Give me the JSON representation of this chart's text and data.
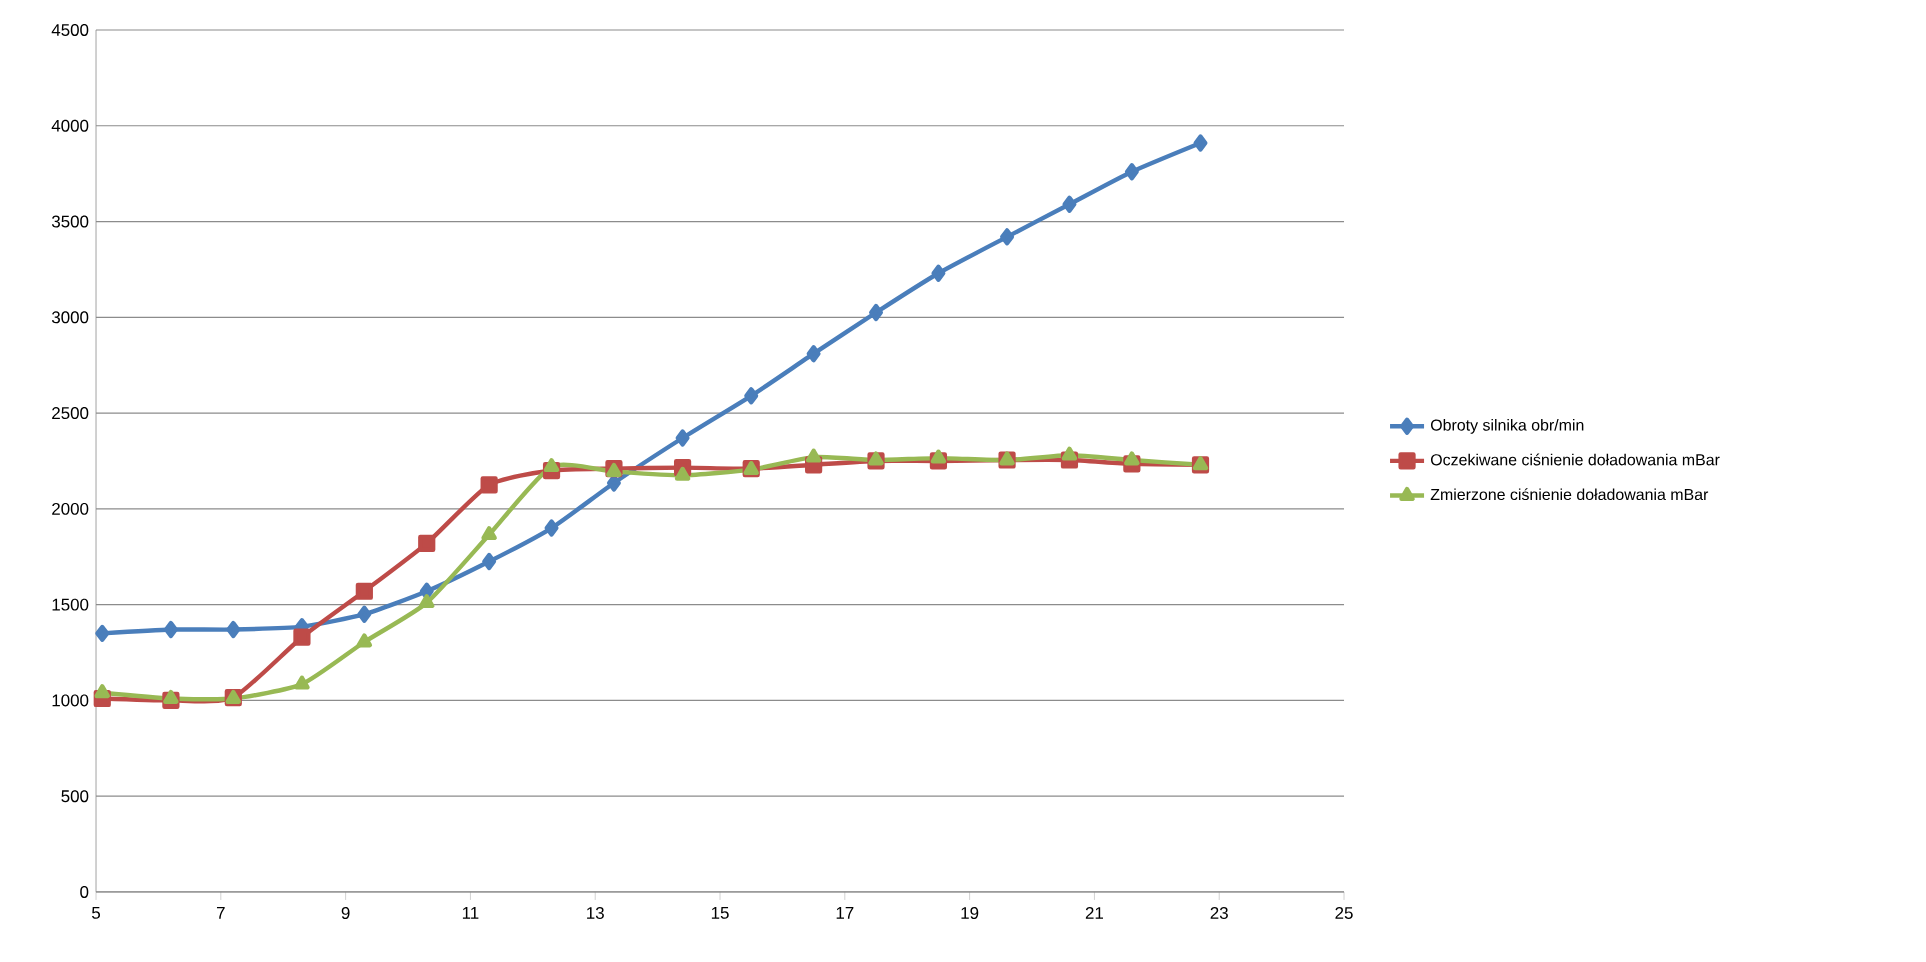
{
  "chart_data": {
    "type": "line",
    "xlim": [
      5,
      25
    ],
    "xticks": [
      5,
      7,
      9,
      11,
      13,
      15,
      17,
      19,
      21,
      23,
      25
    ],
    "ylim": [
      0,
      4500
    ],
    "yticks": [
      0,
      500,
      1000,
      1500,
      2000,
      2500,
      3000,
      3500,
      4000,
      4500
    ],
    "grid": "y",
    "legend": "right",
    "line_style": "solid",
    "x": [
      5.1,
      6.2,
      7.2,
      8.3,
      9.3,
      10.3,
      11.3,
      12.3,
      13.3,
      14.4,
      15.5,
      16.5,
      17.5,
      18.5,
      19.6,
      20.6,
      21.6,
      22.7
    ],
    "series": [
      {
        "name": "Obroty silnika obr/min",
        "color": "#4a7ebb",
        "marker": "diamond",
        "values": [
          1350,
          1370,
          1370,
          1385,
          1450,
          1570,
          1725,
          1900,
          2135,
          2370,
          2590,
          2810,
          3025,
          3230,
          3420,
          3590,
          3760,
          3910
        ]
      },
      {
        "name": "Oczekiwane ciśnienie doładowania mBar",
        "color": "#be4b48",
        "marker": "square",
        "values": [
          1010,
          1000,
          1015,
          1330,
          1570,
          1820,
          2125,
          2200,
          2210,
          2215,
          2210,
          2230,
          2250,
          2250,
          2255,
          2255,
          2235,
          2230
        ]
      },
      {
        "name": "Zmierzone ciśnienie doładowania mBar",
        "color": "#98b954",
        "marker": "triangle",
        "values": [
          1040,
          1010,
          1010,
          1085,
          1305,
          1510,
          1865,
          2220,
          2195,
          2175,
          2205,
          2270,
          2255,
          2265,
          2255,
          2280,
          2255,
          2230
        ]
      }
    ]
  }
}
